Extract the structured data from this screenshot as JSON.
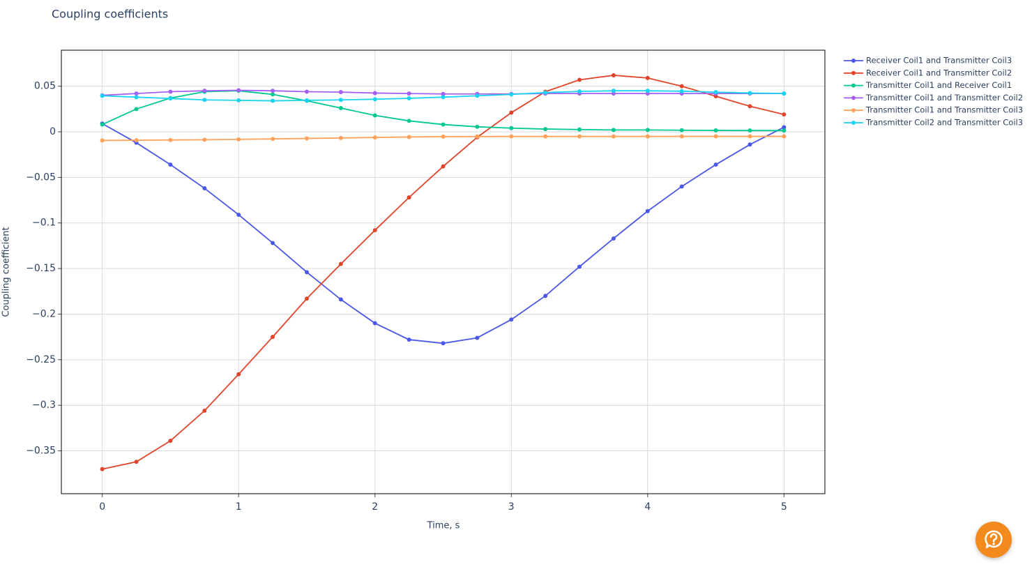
{
  "chart_data": {
    "type": "line",
    "title": "Coupling coefficients",
    "x_label": "Time, s",
    "y_label": "Coupling coefficient",
    "x": [
      0,
      0.25,
      0.5,
      0.75,
      1,
      1.25,
      1.5,
      1.75,
      2,
      2.25,
      2.5,
      2.75,
      3,
      3.25,
      3.5,
      3.75,
      4,
      4.25,
      4.5,
      4.75,
      5
    ],
    "xlim": [
      -0.3,
      5.3
    ],
    "xticks": [
      0,
      1,
      2,
      3,
      4,
      5
    ],
    "ylim": [
      -0.397,
      0.0895
    ],
    "yticks": [
      {
        "value": -0.35,
        "label": "−0.35"
      },
      {
        "value": -0.3,
        "label": "−0.3"
      },
      {
        "value": -0.25,
        "label": "−0.25"
      },
      {
        "value": -0.2,
        "label": "−0.2"
      },
      {
        "value": -0.15,
        "label": "−0.15"
      },
      {
        "value": -0.1,
        "label": "−0.1"
      },
      {
        "value": -0.05,
        "label": "−0.05"
      },
      0,
      0.05
    ],
    "grid": true,
    "series": [
      {
        "name": "Receiver Coil1 and Transmitter Coil3",
        "color": "#4b57e6",
        "values": [
          0.009,
          -0.012,
          -0.036,
          -0.062,
          -0.091,
          -0.122,
          -0.154,
          -0.184,
          -0.21,
          -0.228,
          -0.232,
          -0.226,
          -0.206,
          -0.18,
          -0.148,
          -0.117,
          -0.087,
          -0.06,
          -0.036,
          -0.014,
          0.005
        ]
      },
      {
        "name": "Receiver Coil1 and Transmitter Coil2",
        "color": "#e0442b",
        "values": [
          -0.37,
          -0.362,
          -0.339,
          -0.306,
          -0.266,
          -0.225,
          -0.183,
          -0.145,
          -0.108,
          -0.072,
          -0.038,
          -0.006,
          0.021,
          0.044,
          0.057,
          0.062,
          0.059,
          0.05,
          0.039,
          0.028,
          0.019
        ]
      },
      {
        "name": "Transmitter Coil1 and Receiver Coil1",
        "color": "#00c891",
        "values": [
          0.008,
          0.025,
          0.037,
          0.044,
          0.045,
          0.041,
          0.034,
          0.026,
          0.018,
          0.012,
          0.008,
          0.0055,
          0.004,
          0.003,
          0.0025,
          0.002,
          0.002,
          0.0017,
          0.0015,
          0.0014,
          0.0013
        ]
      },
      {
        "name": "Transmitter Coil1 and Transmitter Coil2",
        "color": "#a55ff5",
        "values": [
          0.04,
          0.042,
          0.044,
          0.045,
          0.0455,
          0.045,
          0.044,
          0.0435,
          0.0425,
          0.042,
          0.0415,
          0.0415,
          0.0415,
          0.042,
          0.042,
          0.042,
          0.042,
          0.042,
          0.042,
          0.042,
          0.042
        ]
      },
      {
        "name": "Transmitter Coil1 and Transmitter Coil3",
        "color": "#ffa15a",
        "values": [
          -0.0095,
          -0.0093,
          -0.009,
          -0.0087,
          -0.0083,
          -0.0078,
          -0.0073,
          -0.0068,
          -0.0062,
          -0.0057,
          -0.0053,
          -0.0052,
          -0.0051,
          -0.0051,
          -0.0051,
          -0.0051,
          -0.0051,
          -0.005,
          -0.005,
          -0.005,
          -0.005
        ]
      },
      {
        "name": "Transmitter Coil2 and Transmitter Coil3",
        "color": "#19d3f3",
        "values": [
          0.0395,
          0.038,
          0.0365,
          0.035,
          0.0345,
          0.034,
          0.0345,
          0.035,
          0.0357,
          0.0367,
          0.038,
          0.0395,
          0.041,
          0.043,
          0.0443,
          0.045,
          0.045,
          0.0445,
          0.0435,
          0.0425,
          0.042
        ]
      }
    ]
  }
}
